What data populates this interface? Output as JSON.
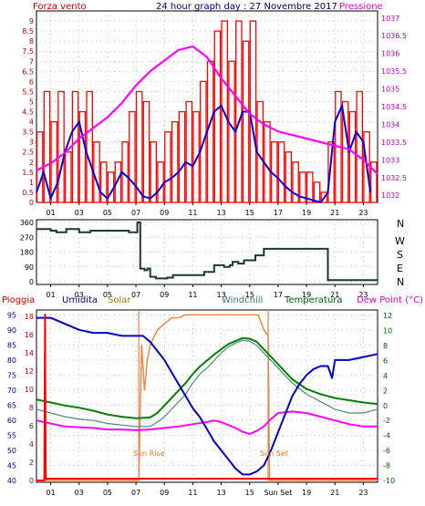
{
  "header": {
    "left": "Forza vento",
    "center": "24 hour graph day : 27 Novembre 2017",
    "right": "Pressione"
  },
  "wind_panel": {
    "cardinals": [
      "N",
      "W",
      "S",
      "E",
      "N"
    ]
  },
  "bottom_legend": {
    "pioggia": "Pioggia",
    "umidita": "Umidita",
    "solar": "Solar",
    "windchill": "Windchill",
    "temperatura": "Temperatura",
    "dewpoint": "Dew Point (°C)"
  },
  "annotations": {
    "sunrise": "Sun Rise",
    "sunset": "Sun Set"
  },
  "colors": {
    "wind_speed": "#ff0000",
    "wind_gust": "#0000dd",
    "pressure": "#ff00ff",
    "direction": "#1a3a2a",
    "rain": "#ff0000",
    "humidity": "#0000cc",
    "solar": "#f08040",
    "windchill": "#4a8a80",
    "temperature": "#008000",
    "dewpoint": "#ff00ff"
  },
  "chart_data": [
    {
      "type": "line",
      "name": "wind-pressure",
      "x_ticks": [
        "01",
        "03",
        "05",
        "07",
        "09",
        "11",
        "13",
        "15",
        "17",
        "19",
        "21",
        "23"
      ],
      "x_tick_hours": [
        1,
        3,
        5,
        7,
        9,
        11,
        13,
        15,
        17,
        19,
        21,
        23
      ],
      "xlim": [
        0,
        24
      ],
      "left_axis": {
        "label": "Forza vento",
        "ticks": [
          "0",
          "0.5",
          "1",
          "1.5",
          "2",
          "2.5",
          "3",
          "3.5",
          "4",
          "4.5",
          "5",
          "5.5",
          "6",
          "6.5",
          "7",
          "7.5",
          "8",
          "8.5",
          "9"
        ],
        "ylim": [
          0,
          9.5
        ]
      },
      "right_axis": {
        "label": "Pressione",
        "ticks": [
          "1032",
          "1032.5",
          "1033",
          "1033.5",
          "1034",
          "1034.5",
          "1035",
          "1035.5",
          "1036",
          "1036.5",
          "1037"
        ],
        "ylim": [
          1031.8,
          1037.2
        ]
      },
      "series": [
        {
          "name": "Forza vento",
          "axis": "left",
          "style": "bars",
          "x": [
            0,
            0.5,
            1,
            1.5,
            2,
            2.5,
            3,
            3.5,
            4,
            4.5,
            5,
            5.5,
            6,
            6.5,
            7,
            7.5,
            8,
            8.5,
            9,
            9.5,
            10,
            10.5,
            11,
            11.5,
            12,
            12.5,
            13,
            13.5,
            14,
            14.5,
            15,
            15.5,
            16,
            16.5,
            17,
            17.5,
            18,
            18.5,
            19,
            19.5,
            20,
            20.5,
            21,
            21.5,
            22,
            22.5,
            23,
            23.5
          ],
          "values": [
            3.5,
            5.5,
            4,
            5.5,
            2.5,
            5.5,
            4.5,
            5.5,
            3,
            2,
            1.5,
            2,
            3,
            4.5,
            5.5,
            5,
            3,
            2,
            3.5,
            4,
            4.5,
            5,
            4.5,
            6,
            7,
            8.5,
            9,
            7,
            9,
            8,
            9,
            5,
            4,
            3,
            3,
            2.5,
            2,
            1.5,
            1.5,
            1,
            0.5,
            3,
            5.5,
            5,
            4.5,
            5.5,
            3.5,
            2
          ]
        },
        {
          "name": "Raffica",
          "axis": "left",
          "style": "line",
          "x": [
            0,
            0.5,
            1,
            1.5,
            2,
            2.5,
            3,
            3.5,
            4,
            4.5,
            5,
            5.5,
            6,
            6.5,
            7,
            7.5,
            8,
            8.5,
            9,
            9.5,
            10,
            10.5,
            11,
            11.5,
            12,
            12.5,
            13,
            13.5,
            14,
            14.5,
            15,
            15.5,
            16,
            16.5,
            17,
            17.5,
            18,
            18.5,
            19,
            19.5,
            20,
            20.5,
            21,
            21.5,
            22,
            22.5,
            23,
            23.5
          ],
          "values": [
            0.5,
            1.5,
            0.2,
            1,
            2.5,
            3.5,
            4,
            2.5,
            1.5,
            0.5,
            0.2,
            0.8,
            1.5,
            1.2,
            0.8,
            0.3,
            0.2,
            0.5,
            1,
            1.2,
            1.5,
            2,
            1.8,
            2.5,
            3.5,
            4.5,
            4.8,
            4,
            3.5,
            4.5,
            4.5,
            2.5,
            2,
            1.5,
            1.2,
            0.8,
            0.5,
            0.3,
            0.2,
            0.1,
            0,
            0.5,
            4,
            4.8,
            2.5,
            3.5,
            3,
            0.5
          ]
        },
        {
          "name": "Pressione",
          "axis": "right",
          "style": "line",
          "x": [
            0,
            1,
            2,
            3,
            4,
            5,
            6,
            7,
            8,
            9,
            10,
            11,
            12,
            13,
            14,
            15,
            16,
            17,
            18,
            19,
            20,
            21,
            22,
            23,
            24
          ],
          "values": [
            1032.7,
            1032.9,
            1033.2,
            1033.6,
            1033.9,
            1034.2,
            1034.6,
            1035.1,
            1035.5,
            1035.8,
            1036.1,
            1036.2,
            1035.9,
            1035.3,
            1034.8,
            1034.3,
            1034.0,
            1033.8,
            1033.7,
            1033.6,
            1033.5,
            1033.4,
            1033.3,
            1033.0,
            1032.6
          ]
        }
      ]
    },
    {
      "type": "line",
      "name": "wind-direction",
      "x_ticks": [
        "01",
        "03",
        "05",
        "07",
        "09",
        "11",
        "13",
        "15",
        "17",
        "19",
        "21",
        "23"
      ],
      "xlim": [
        0,
        24
      ],
      "y_ticks": [
        "0",
        "90",
        "180",
        "270",
        "360"
      ],
      "ylim": [
        0,
        360
      ],
      "series": [
        {
          "name": "Direzione",
          "x": [
            0,
            0.6,
            1,
            1.4,
            1.8,
            2.1,
            2.5,
            3,
            3.3,
            3.8,
            4.5,
            5,
            5.5,
            6,
            6.5,
            7,
            7.1,
            7.3,
            7.6,
            7.8,
            8,
            8.4,
            8.8,
            9.2,
            9.6,
            10,
            10.5,
            11,
            11.4,
            11.8,
            12.2,
            12.5,
            12.8,
            13.2,
            13.6,
            13.8,
            14.2,
            14.6,
            15,
            15.4,
            16,
            17,
            18,
            19,
            19.5,
            20,
            20.2,
            20.5,
            21,
            22,
            23,
            24
          ],
          "values": [
            320,
            320,
            310,
            300,
            300,
            320,
            320,
            300,
            300,
            310,
            310,
            310,
            310,
            310,
            300,
            300,
            360,
            80,
            70,
            80,
            30,
            20,
            20,
            25,
            40,
            40,
            40,
            40,
            40,
            60,
            60,
            100,
            100,
            90,
            100,
            120,
            110,
            130,
            130,
            160,
            200,
            200,
            200,
            200,
            200,
            200,
            200,
            10,
            10,
            10,
            10,
            10
          ]
        }
      ]
    },
    {
      "type": "line",
      "name": "temperature-humidity",
      "x_ticks": [
        "01",
        "03",
        "05",
        "07",
        "09",
        "11",
        "13",
        "15",
        "Sun Set",
        "19",
        "21",
        "23"
      ],
      "xlim": [
        0,
        24
      ],
      "left_axis": {
        "label": "Umidita",
        "ticks": [
          "40",
          "45",
          "50",
          "55",
          "60",
          "65",
          "70",
          "75",
          "80",
          "85",
          "90",
          "95"
        ],
        "ylim": [
          40,
          96
        ]
      },
      "rain_axis": {
        "label": "Pioggia",
        "ticks": [
          "0",
          "2",
          "4",
          "6",
          "8",
          "10",
          "12",
          "14",
          "16",
          "18"
        ],
        "ylim": [
          0,
          18.5
        ]
      },
      "right_axis": {
        "label": "Dew Point (°C)",
        "ticks": [
          "-10",
          "-8",
          "-6",
          "-4",
          "-2",
          "0",
          "2",
          "4",
          "6",
          "8",
          "10",
          "12"
        ],
        "ylim": [
          -10,
          12.5
        ]
      },
      "sunrise_hour": 7.2,
      "sunset_hour": 16.3,
      "series": [
        {
          "name": "Umidita",
          "axis": "left",
          "x": [
            0,
            1,
            2,
            3,
            4,
            5,
            6,
            7,
            7.5,
            8,
            8.5,
            9,
            9.5,
            10,
            10.5,
            11,
            11.5,
            12,
            12.5,
            13,
            13.5,
            14,
            14.5,
            15,
            15.5,
            16,
            16.5,
            17,
            17.5,
            18,
            18.5,
            19,
            19.5,
            20,
            20.5,
            20.8,
            21,
            22,
            23,
            24
          ],
          "values": [
            94,
            94,
            92,
            90,
            89,
            89,
            88,
            88,
            88,
            86,
            83,
            80,
            76,
            72,
            68,
            64,
            61,
            57,
            53,
            50,
            47,
            44,
            42,
            42,
            43,
            45,
            50,
            56,
            62,
            68,
            72,
            75,
            77,
            78,
            78,
            74,
            80,
            80,
            81,
            82
          ]
        },
        {
          "name": "Solar",
          "axis": "left",
          "x": [
            0,
            7.2,
            7.4,
            7.6,
            7.8,
            8,
            8.5,
            9,
            9.5,
            10,
            10.5,
            11,
            12,
            13,
            14,
            15,
            15.6,
            16,
            16.3,
            16.4,
            24
          ],
          "values": [
            40,
            40,
            85,
            70,
            80,
            85,
            90,
            92,
            94,
            94,
            95,
            95,
            95,
            95,
            95,
            95,
            95,
            90,
            88,
            40,
            40
          ]
        },
        {
          "name": "Temperatura",
          "axis": "right",
          "x": [
            0,
            1,
            2,
            3,
            4,
            5,
            6,
            7,
            8,
            8.5,
            9,
            9.5,
            10,
            10.5,
            11,
            11.5,
            12,
            12.5,
            13,
            13.5,
            14,
            14.5,
            15,
            15.5,
            16,
            16.5,
            17,
            17.5,
            18,
            19,
            20,
            21,
            22,
            23,
            24
          ],
          "values": [
            0.8,
            0.4,
            0,
            -0.3,
            -0.7,
            -1.2,
            -1.5,
            -1.7,
            -1.6,
            -1,
            0,
            1,
            2,
            3,
            4.2,
            5.2,
            6,
            6.8,
            7.5,
            8.2,
            8.6,
            9,
            8.9,
            8.5,
            7.5,
            6.5,
            5.5,
            4.5,
            3.5,
            2.2,
            1.5,
            1,
            0.7,
            0.4,
            0.2
          ]
        },
        {
          "name": "Windchill",
          "axis": "right",
          "x": [
            0,
            1,
            2,
            3,
            4,
            5,
            6,
            7,
            8,
            8.5,
            9,
            9.5,
            10,
            10.5,
            11,
            11.5,
            12,
            12.5,
            13,
            13.5,
            14,
            14.5,
            15,
            15.5,
            16,
            16.5,
            17,
            17.5,
            18,
            19,
            20,
            21,
            22,
            23,
            24
          ],
          "values": [
            -0.5,
            -1,
            -1.5,
            -1.8,
            -2,
            -2.4,
            -2.6,
            -2.8,
            -2.8,
            -2.2,
            -1.5,
            -0.5,
            0.5,
            1.5,
            3,
            4.2,
            5,
            6,
            7,
            7.8,
            8.3,
            8.7,
            8.6,
            8,
            7,
            6,
            5,
            4,
            3,
            1.5,
            0.5,
            -0.5,
            -1,
            -1,
            -0.5
          ]
        },
        {
          "name": "Dew Point",
          "axis": "right",
          "x": [
            0,
            1,
            2,
            3,
            4,
            5,
            6,
            7,
            8,
            9,
            10,
            11,
            12,
            12.5,
            13,
            13.5,
            14,
            14.5,
            15,
            15.5,
            16,
            16.5,
            17,
            18,
            19,
            20,
            21,
            22,
            23,
            24
          ],
          "values": [
            -2,
            -2.4,
            -2.8,
            -2.9,
            -3,
            -3.2,
            -3.2,
            -3.3,
            -3.2,
            -3,
            -2.8,
            -2.5,
            -2.2,
            -2,
            -2.2,
            -2.6,
            -3,
            -3.5,
            -3.8,
            -3.4,
            -2.8,
            -1.8,
            -1,
            -0.8,
            -1,
            -1.5,
            -2,
            -2.5,
            -2.8,
            -2.8
          ]
        },
        {
          "name": "Pioggia",
          "axis": "rain",
          "x": [
            0,
            0.55,
            0.6,
            0.65,
            24
          ],
          "values": [
            0,
            0,
            18.2,
            0.2,
            0.2
          ]
        }
      ]
    }
  ]
}
